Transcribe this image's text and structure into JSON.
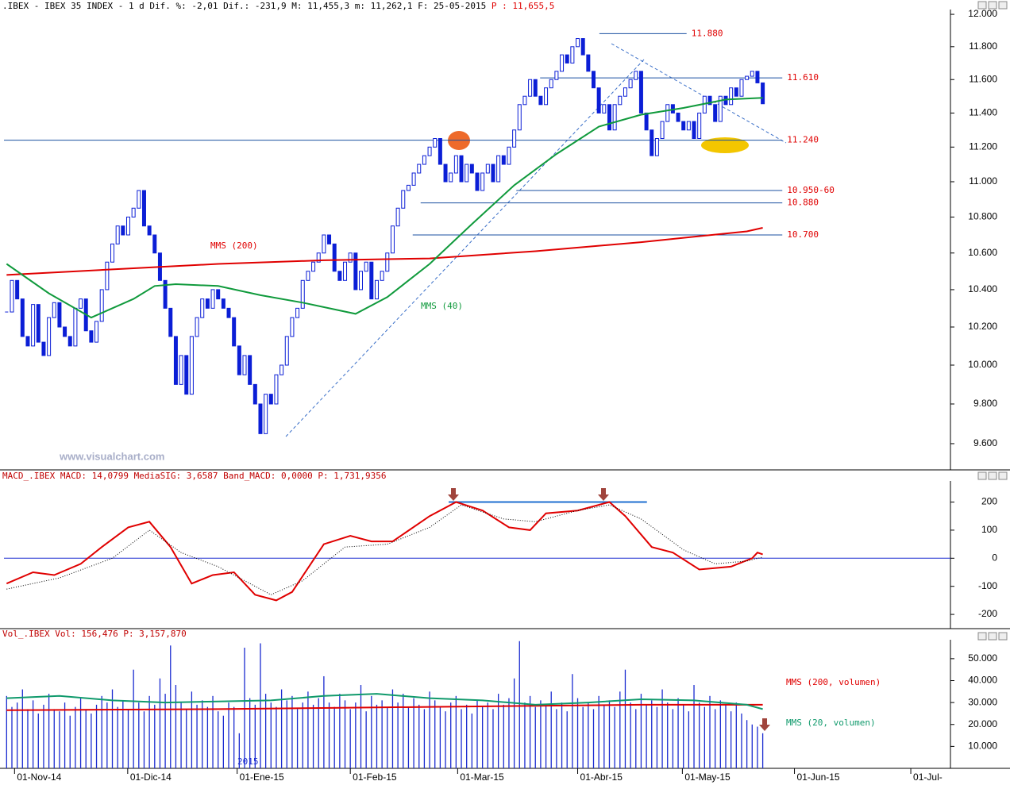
{
  "header": {
    "info": ".IBEX - IBEX 35 INDEX -  1 d Dif. %: -2,01 Dif.: -231,9 M: 11,455,3 m: 11,262,1 F: 25-05-2015",
    "price": "P : 11,655,5"
  },
  "chart_data": [
    {
      "type": "candlestick",
      "color": "#0b1ed6",
      "values": [
        10280,
        10450,
        10350,
        10150,
        10100,
        10320,
        10120,
        10050,
        10250,
        10330,
        10200,
        10150,
        10100,
        10300,
        10350,
        10180,
        10120,
        10230,
        10400,
        10550,
        10650,
        10750,
        10700,
        10800,
        10850,
        10950,
        10750,
        10700,
        10600,
        10450,
        10300,
        10150,
        9900,
        10050,
        9850,
        10150,
        10250,
        10350,
        10300,
        10400,
        10350,
        10300,
        10250,
        10100,
        9950,
        10050,
        9900,
        9800,
        9650,
        9850,
        9800,
        9950,
        10000,
        10150,
        10250,
        10300,
        10450,
        10500,
        10550,
        10600,
        10700,
        10650,
        10500,
        10450,
        10550,
        10600,
        10400,
        10500,
        10550,
        10350,
        10450,
        10500,
        10600,
        10750,
        10850,
        10950,
        10980,
        11050,
        11100,
        11150,
        11200,
        11250,
        11100,
        11000,
        11050,
        11150,
        11000,
        11100,
        11050,
        10950,
        11050,
        11100,
        11000,
        11150,
        11100,
        11200,
        11300,
        11450,
        11500,
        11600,
        11500,
        11450,
        11550,
        11600,
        11650,
        11750,
        11700,
        11800,
        11850,
        11750,
        11650,
        11550,
        11400,
        11450,
        11300,
        11450,
        11500,
        11550,
        11600,
        11650,
        11400,
        11300,
        11150,
        11250,
        11350,
        11450,
        11400,
        11350,
        11300,
        11350,
        11250,
        11400,
        11500,
        11450,
        11350,
        11500,
        11450,
        11550,
        11500,
        11600,
        11620,
        11650,
        11580,
        11455
      ],
      "series": [
        {
          "name": "MMS (200)",
          "color": "#e00000",
          "x": [
            0,
            20,
            40,
            60,
            80,
            100,
            120,
            140,
            143
          ],
          "values": [
            10480,
            10510,
            10540,
            10560,
            10570,
            10610,
            10660,
            10720,
            10740
          ]
        },
        {
          "name": "MMS (40)",
          "color": "#109a3c",
          "x": [
            0,
            8,
            16,
            24,
            28,
            32,
            40,
            48,
            56,
            66,
            72,
            80,
            88,
            96,
            104,
            112,
            120,
            128,
            136,
            143
          ],
          "values": [
            10540,
            10380,
            10250,
            10350,
            10420,
            10430,
            10420,
            10370,
            10330,
            10270,
            10360,
            10540,
            10760,
            10980,
            11160,
            11320,
            11390,
            11430,
            11480,
            11490
          ]
        }
      ],
      "annotations": [
        {
          "value": 11880,
          "label": "11.880",
          "x": [
            112.1,
            128.6
          ]
        },
        {
          "value": 11610,
          "label": "11.610",
          "x": [
            100.9,
            146.7
          ]
        },
        {
          "value": 11240,
          "label": "11.240",
          "x": [
            -0.5,
            146.7
          ]
        },
        {
          "value": 10950,
          "label": "10.950-60",
          "x": [
            96.4,
            146.7
          ]
        },
        {
          "value": 10880,
          "label": "10.880",
          "x": [
            78.3,
            146.7
          ]
        },
        {
          "value": 10700,
          "label": "10.700",
          "x": [
            76.8,
            146.7
          ]
        }
      ],
      "watermark": "www.visualchart.com",
      "log_scale": true,
      "xlim": [
        -0.5,
        178.5
      ],
      "ylim": [
        9470,
        12040
      ],
      "yticks": [
        {
          "value": 12000,
          "label": "12.000"
        },
        {
          "value": 11800,
          "label": "11.800"
        },
        {
          "value": 11600,
          "label": "11.600"
        },
        {
          "value": 11400,
          "label": "11.400"
        },
        {
          "value": 11200,
          "label": "11.200"
        },
        {
          "value": 11000,
          "label": "11.000"
        },
        {
          "value": 10800,
          "label": "10.800"
        },
        {
          "value": 10600,
          "label": "10.600"
        },
        {
          "value": 10400,
          "label": "10.400"
        },
        {
          "value": 10200,
          "label": "10.200"
        },
        {
          "value": 10000,
          "label": "10.000"
        },
        {
          "value": 9800,
          "label": "9.800"
        },
        {
          "value": 9600,
          "label": "9.600"
        }
      ]
    },
    {
      "type": "line",
      "title": "MACD_.IBEX MACD: 14,0799 MediaSIG: 3,6587 Band_MACD: 0,0000 P: 1,731,9356",
      "series": [
        {
          "color": "#e00000",
          "x": [
            0,
            5,
            9,
            14,
            18,
            23,
            27,
            31,
            35,
            39,
            43,
            47,
            51,
            54,
            60,
            65,
            69,
            73,
            80,
            85,
            90,
            95,
            99,
            102,
            108,
            114,
            117,
            122,
            126,
            131,
            137,
            141,
            142,
            143
          ],
          "values": [
            -90,
            -50,
            -60,
            -20,
            40,
            110,
            130,
            40,
            -90,
            -60,
            -50,
            -130,
            -150,
            -120,
            50,
            80,
            60,
            60,
            150,
            200,
            170,
            110,
            100,
            160,
            170,
            200,
            150,
            40,
            20,
            -40,
            -30,
            0,
            20,
            14
          ]
        },
        {
          "color": "#000000",
          "dashed": true,
          "x": [
            0,
            10,
            20,
            27,
            33,
            40,
            50,
            56,
            64,
            72,
            80,
            86,
            94,
            100,
            108,
            114,
            120,
            128,
            134,
            140,
            143
          ],
          "values": [
            -110,
            -70,
            0,
            100,
            20,
            -30,
            -130,
            -80,
            40,
            50,
            110,
            190,
            140,
            130,
            170,
            190,
            140,
            30,
            -20,
            -10,
            4
          ]
        }
      ],
      "level": {
        "value": 200,
        "x": [
          83.6,
          121.1
        ],
        "color": "#1f6fd0"
      },
      "xlim": [
        -0.5,
        178.5
      ],
      "ylim": [
        -245,
        275
      ],
      "yticks": [
        200,
        100,
        0,
        -100,
        -200
      ]
    },
    {
      "type": "bar",
      "title": "Vol_.IBEX Vol: 156,476 P: 3,157,870",
      "color": "#1a2bd0",
      "values": [
        33000,
        28000,
        30000,
        36000,
        27000,
        31000,
        25000,
        29000,
        34000,
        27000,
        26000,
        30000,
        24000,
        28000,
        32000,
        27000,
        25000,
        29000,
        33000,
        30000,
        36000,
        28000,
        31000,
        27000,
        45000,
        30000,
        26000,
        33000,
        29000,
        41000,
        34000,
        56000,
        38000,
        30000,
        27000,
        35000,
        29000,
        31000,
        28000,
        33000,
        26000,
        24000,
        30000,
        28000,
        16000,
        55000,
        32000,
        29000,
        57000,
        34000,
        30000,
        28000,
        36000,
        31000,
        33000,
        27000,
        30000,
        35000,
        29000,
        32000,
        42000,
        30000,
        28000,
        34000,
        31000,
        27000,
        30000,
        38000,
        26000,
        33000,
        29000,
        31000,
        28000,
        36000,
        30000,
        34000,
        28000,
        32000,
        29000,
        27000,
        35000,
        31000,
        28000,
        26000,
        30000,
        33000,
        27000,
        29000,
        25000,
        31000,
        28000,
        30000,
        27000,
        34000,
        29000,
        32000,
        41000,
        58000,
        30000,
        33000,
        28000,
        31000,
        29000,
        35000,
        27000,
        30000,
        26000,
        43000,
        32000,
        28000,
        30000,
        27000,
        33000,
        29000,
        31000,
        28000,
        35000,
        45000,
        30000,
        27000,
        34000,
        29000,
        31000,
        28000,
        36000,
        30000,
        27000,
        32000,
        29000,
        26000,
        38000,
        30000,
        28000,
        33000,
        27000,
        31000,
        29000,
        26000,
        30000,
        25000,
        22000,
        20000,
        19000,
        16000
      ],
      "series": [
        {
          "name": "MMS (200, volumen)",
          "color": "#e00000",
          "x": [
            0,
            40,
            80,
            120,
            143
          ],
          "values": [
            26500,
            27000,
            28000,
            29000,
            29000
          ]
        },
        {
          "name": "MMS (20, volumen)",
          "color": "#109a6c",
          "x": [
            0,
            10,
            20,
            30,
            40,
            50,
            60,
            70,
            80,
            90,
            100,
            110,
            120,
            130,
            140,
            143
          ],
          "values": [
            32000,
            33000,
            31000,
            30000,
            30500,
            31000,
            33000,
            34000,
            32000,
            31000,
            29000,
            30000,
            31500,
            31000,
            29000,
            27000
          ]
        }
      ],
      "year_label": "2015",
      "xlim": [
        -0.5,
        178.5
      ],
      "ylim": [
        0,
        59000
      ],
      "yticks": [
        {
          "value": 50000,
          "label": "50.000"
        },
        {
          "value": 40000,
          "label": "40.000"
        },
        {
          "value": 30000,
          "label": "30.000"
        },
        {
          "value": 20000,
          "label": "20.000"
        },
        {
          "value": 10000,
          "label": "10.000"
        }
      ],
      "xticks": [
        {
          "value": 1.5,
          "label": "01-Nov-14"
        },
        {
          "value": 22.9,
          "label": "01-Dic-14"
        },
        {
          "value": 43.6,
          "label": "01-Ene-15"
        },
        {
          "value": 65,
          "label": "01-Feb-15"
        },
        {
          "value": 85.3,
          "label": "01-Mar-15"
        },
        {
          "value": 108,
          "label": "01-Abr-15"
        },
        {
          "value": 127.8,
          "label": "01-May-15"
        },
        {
          "value": 149,
          "label": "01-Jun-15"
        },
        {
          "value": 171,
          "label": "01-Jul-"
        }
      ]
    }
  ]
}
